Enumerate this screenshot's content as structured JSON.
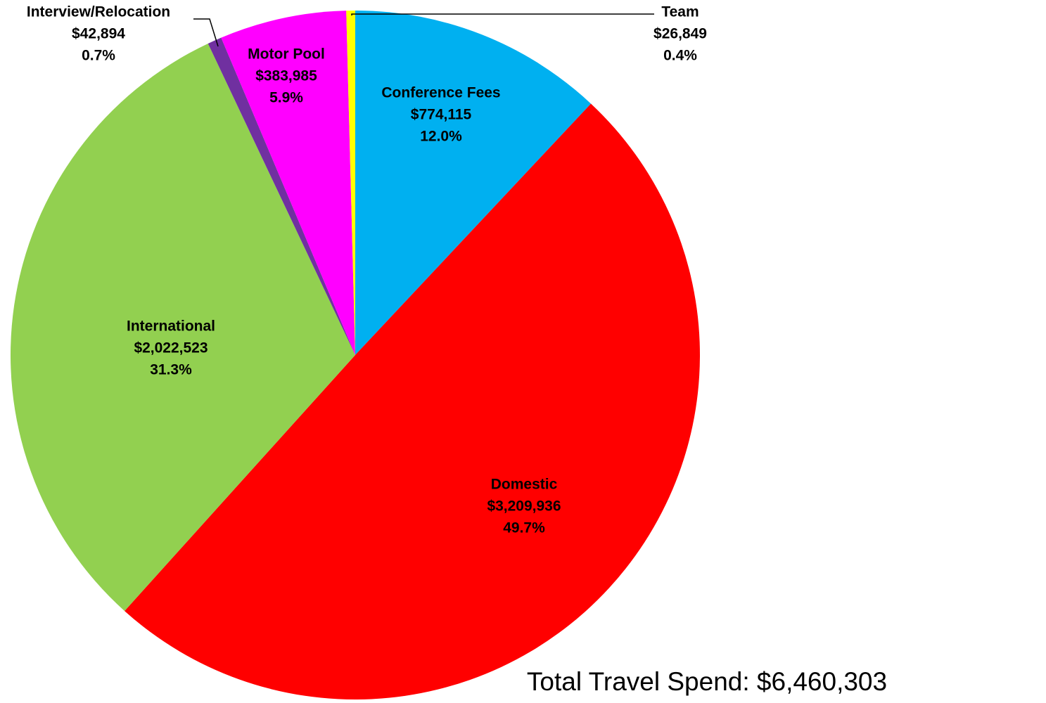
{
  "chart_data": {
    "type": "pie",
    "categories": [
      "Conference Fees",
      "Domestic",
      "International",
      "Interview/Relocation",
      "Motor Pool",
      "Team"
    ],
    "values": [
      774115,
      3209936,
      2022523,
      42894,
      383985,
      26849
    ],
    "value_labels": [
      "$774,115",
      "$3,209,936",
      "$2,022,523",
      "$42,894",
      "$383,985",
      "$26,849"
    ],
    "percent_labels": [
      "12.0%",
      "49.7%",
      "31.3%",
      "0.7%",
      "5.9%",
      "0.4%"
    ],
    "colors": [
      "#00b0f0",
      "#ff0000",
      "#92d050",
      "#7030a0",
      "#ff00ff",
      "#ffff00"
    ],
    "annotation": "Total Travel Spend:  $6,460,303"
  }
}
